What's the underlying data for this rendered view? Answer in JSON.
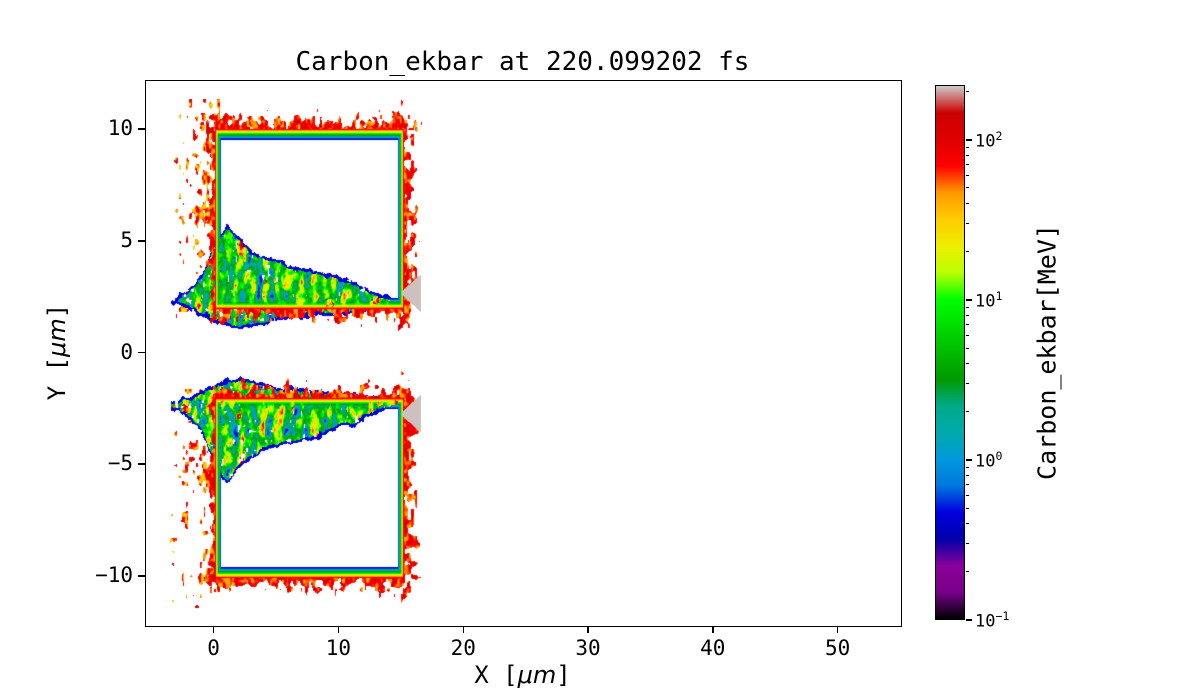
{
  "figure": {
    "background": "#ffffff"
  },
  "chart_data": {
    "type": "heatmap",
    "title": "Carbon_ekbar at 220.099202 fs",
    "species": "Carbon",
    "quantity": "ekbar",
    "time_fs": 220.099202,
    "xlabel": "X [μm]",
    "ylabel": "Y [μm]",
    "xlabel_parts": {
      "pre": "X [",
      "mu": "μm",
      "post": "]"
    },
    "ylabel_parts": {
      "pre": "Y [",
      "mu": "μm",
      "post": "]"
    },
    "xlim": [
      -5.5,
      55
    ],
    "ylim": [
      -12.2,
      12.2
    ],
    "xticks": [
      0,
      10,
      20,
      30,
      40,
      50
    ],
    "yticks": [
      -10,
      -5,
      0,
      5,
      10
    ],
    "grid": false,
    "colorbar": {
      "label": "Carbon_ekbar[MeV]",
      "scale": "log",
      "vmin": 0.1,
      "vmax": 220,
      "tick_exponents": [
        -1,
        0,
        1,
        2
      ],
      "colormap": "nipy_spectral",
      "colormap_stops": [
        [
          0.0,
          0.0,
          0.0
        ],
        [
          0.4667,
          0.0,
          0.5333
        ],
        [
          0.5333,
          0.0,
          0.6
        ],
        [
          0.0,
          0.0,
          0.6667
        ],
        [
          0.0,
          0.0,
          0.8667
        ],
        [
          0.0,
          0.4667,
          0.8667
        ],
        [
          0.0,
          0.6,
          0.8667
        ],
        [
          0.0,
          0.6667,
          0.6667
        ],
        [
          0.0,
          0.6667,
          0.5333
        ],
        [
          0.0,
          0.6,
          0.0
        ],
        [
          0.0,
          0.7333,
          0.0
        ],
        [
          0.0,
          0.8667,
          0.0
        ],
        [
          0.0,
          1.0,
          0.0
        ],
        [
          0.7333,
          1.0,
          0.0
        ],
        [
          0.9333,
          0.9333,
          0.0
        ],
        [
          1.0,
          0.8,
          0.0
        ],
        [
          1.0,
          0.6,
          0.0
        ],
        [
          1.0,
          0.0,
          0.0
        ],
        [
          0.8667,
          0.0,
          0.0
        ],
        [
          0.8,
          0.0,
          0.0
        ],
        [
          0.8,
          0.8,
          0.8
        ]
      ]
    },
    "features": {
      "frames": [
        {
          "name": "upper-target-slab",
          "x": [
            0.1,
            15.1
          ],
          "y": [
            2.05,
            10.0
          ]
        },
        {
          "name": "lower-target-slab",
          "x": [
            0.1,
            15.1
          ],
          "y": [
            -10.0,
            -2.05
          ]
        }
      ],
      "edge_energy_MeV": {
        "inner": 0.32,
        "outer": 105
      },
      "plume": {
        "x_range": [
          -3.5,
          15.2
        ],
        "top_profile_x": [
          -3,
          -1,
          0,
          1,
          2,
          3,
          5,
          7,
          9,
          11,
          13,
          15
        ],
        "top_profile_y": [
          2.5,
          3.5,
          5.0,
          5.8,
          5.2,
          4.6,
          4.2,
          3.9,
          3.6,
          3.2,
          2.7,
          2.25
        ],
        "bottom_profile_y": [
          2.1,
          1.7,
          1.4,
          1.15,
          1.1,
          1.2,
          1.45,
          1.6,
          1.7,
          1.8,
          1.9,
          2.0
        ]
      },
      "gray_tip": {
        "x": [
          15.0,
          16.55
        ],
        "y_center": 2.7,
        "value_MeV": 215
      }
    }
  }
}
